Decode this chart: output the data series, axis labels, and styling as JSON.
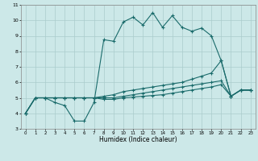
{
  "xlabel": "Humidex (Indice chaleur)",
  "ylabel": "",
  "background_color": "#cce8e8",
  "grid_color": "#aacccc",
  "line_color": "#1a6b6b",
  "xlim": [
    -0.5,
    23.5
  ],
  "ylim": [
    3,
    11
  ],
  "xticks": [
    0,
    1,
    2,
    3,
    4,
    5,
    6,
    7,
    8,
    9,
    10,
    11,
    12,
    13,
    14,
    15,
    16,
    17,
    18,
    19,
    20,
    21,
    22,
    23
  ],
  "yticks": [
    3,
    4,
    5,
    6,
    7,
    8,
    9,
    10,
    11
  ],
  "series": [
    {
      "x": [
        0,
        1,
        2,
        3,
        4,
        5,
        6,
        7,
        8,
        9,
        10,
        11,
        12,
        13,
        14,
        15,
        16,
        17,
        18,
        19,
        20,
        21,
        22,
        23
      ],
      "y": [
        4,
        5,
        5,
        4.7,
        4.5,
        3.5,
        3.5,
        4.7,
        8.75,
        8.65,
        9.9,
        10.2,
        9.7,
        10.5,
        9.55,
        10.3,
        9.55,
        9.3,
        9.5,
        9.0,
        7.4,
        5.1,
        5.5,
        5.5
      ]
    },
    {
      "x": [
        0,
        1,
        2,
        3,
        4,
        5,
        6,
        7,
        8,
        9,
        10,
        11,
        12,
        13,
        14,
        15,
        16,
        17,
        18,
        19,
        20,
        21,
        22,
        23
      ],
      "y": [
        4,
        5,
        5,
        5,
        5,
        5,
        5,
        5,
        5.1,
        5.2,
        5.4,
        5.5,
        5.6,
        5.7,
        5.8,
        5.9,
        6.0,
        6.2,
        6.4,
        6.6,
        7.4,
        5.1,
        5.5,
        5.5
      ]
    },
    {
      "x": [
        0,
        1,
        2,
        3,
        4,
        5,
        6,
        7,
        8,
        9,
        10,
        11,
        12,
        13,
        14,
        15,
        16,
        17,
        18,
        19,
        20,
        21,
        22,
        23
      ],
      "y": [
        4,
        5,
        5,
        5,
        5,
        5,
        5,
        5,
        5.0,
        5.0,
        5.1,
        5.2,
        5.3,
        5.4,
        5.5,
        5.6,
        5.7,
        5.8,
        5.9,
        6.0,
        6.1,
        5.1,
        5.5,
        5.5
      ]
    },
    {
      "x": [
        0,
        1,
        2,
        3,
        4,
        5,
        6,
        7,
        8,
        9,
        10,
        11,
        12,
        13,
        14,
        15,
        16,
        17,
        18,
        19,
        20,
        21,
        22,
        23
      ],
      "y": [
        4,
        5,
        5,
        5,
        5,
        5,
        5,
        5,
        4.9,
        4.9,
        5.0,
        5.05,
        5.1,
        5.15,
        5.2,
        5.3,
        5.4,
        5.5,
        5.6,
        5.7,
        5.85,
        5.1,
        5.5,
        5.5
      ]
    }
  ]
}
